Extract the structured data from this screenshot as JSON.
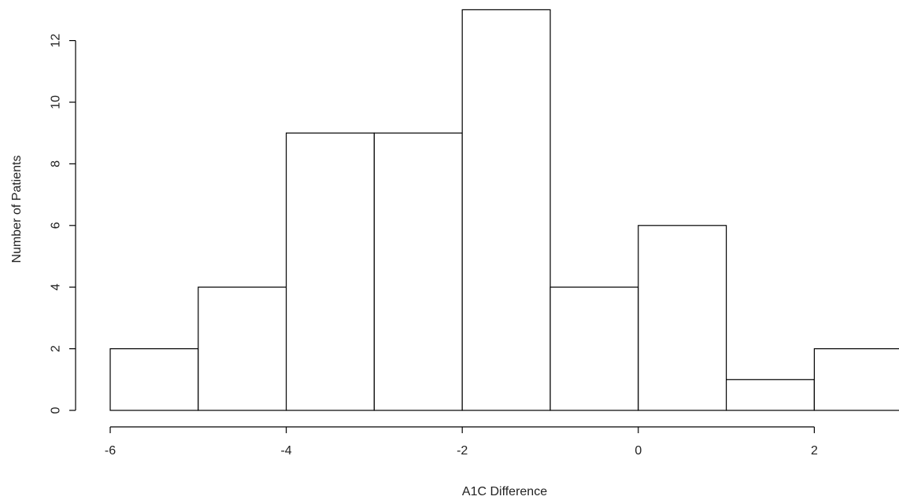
{
  "chart_data": {
    "type": "bar",
    "title": "",
    "xlabel": "A1C Difference",
    "ylabel": "Number of Patients",
    "bins": [
      {
        "from": -6,
        "to": -5,
        "count": 2
      },
      {
        "from": -5,
        "to": -4,
        "count": 4
      },
      {
        "from": -4,
        "to": -3,
        "count": 9
      },
      {
        "from": -3,
        "to": -2,
        "count": 9
      },
      {
        "from": -2,
        "to": -1,
        "count": 13
      },
      {
        "from": -1,
        "to": 0,
        "count": 4
      },
      {
        "from": 0,
        "to": 1,
        "count": 6
      },
      {
        "from": 1,
        "to": 2,
        "count": 1
      },
      {
        "from": 2,
        "to": 3,
        "count": 2
      }
    ],
    "xlim": [
      -6,
      3
    ],
    "ylim": [
      0,
      13
    ],
    "xticks": [
      -6,
      -4,
      -2,
      0,
      2
    ],
    "yticks": [
      0,
      2,
      4,
      6,
      8,
      10,
      12
    ],
    "xtick_labels": [
      "-6",
      "-4",
      "-2",
      "0",
      "2"
    ],
    "ytick_labels": [
      "0",
      "2",
      "4",
      "6",
      "8",
      "10",
      "12"
    ],
    "grid": false,
    "legend": "none",
    "colors": {
      "bar_fill": "#ffffff",
      "bar_stroke": "#000000",
      "axis": "#000000",
      "text": "#222222"
    }
  }
}
